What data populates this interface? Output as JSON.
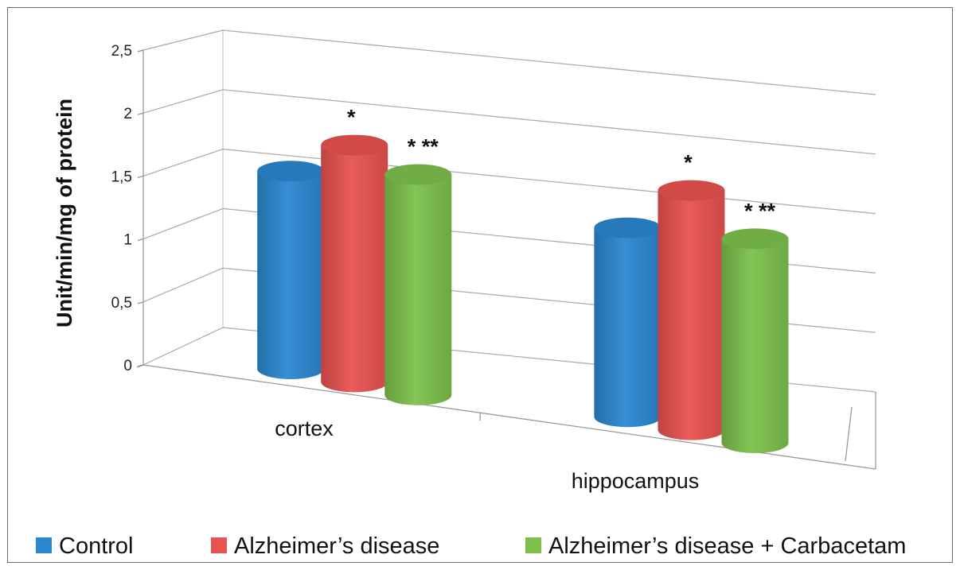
{
  "chart_data": {
    "type": "bar",
    "style": "3d-cylinder",
    "title": "",
    "xlabel": "",
    "ylabel": "Unit/min/mg of protein",
    "ylim": [
      0,
      2.5
    ],
    "yticks": [
      {
        "value": 0,
        "label": "0"
      },
      {
        "value": 0.5,
        "label": "0,5"
      },
      {
        "value": 1,
        "label": "1"
      },
      {
        "value": 1.5,
        "label": "1,5"
      },
      {
        "value": 2,
        "label": "2"
      },
      {
        "value": 2.5,
        "label": "2,5"
      }
    ],
    "grid": true,
    "categories": [
      "cortex",
      "hippocampus"
    ],
    "series": [
      {
        "name": "Control",
        "color": "#2a87d1",
        "values": [
          1.57,
          1.5
        ],
        "annotations": [
          "",
          ""
        ]
      },
      {
        "name": "Alzheimer’s disease",
        "color": "#e8524f",
        "values": [
          1.88,
          1.9
        ],
        "annotations": [
          "*",
          "*"
        ]
      },
      {
        "name": "Alzheimer’s disease + Carbacetam",
        "color": "#7cc04b",
        "values": [
          1.75,
          1.62
        ],
        "annotations": [
          "* **",
          "* **"
        ]
      }
    ],
    "legend_position": "bottom"
  }
}
